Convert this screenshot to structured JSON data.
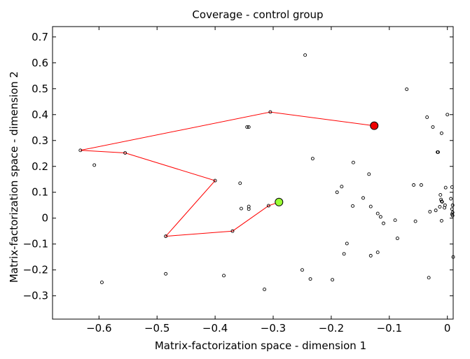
{
  "chart_data": {
    "type": "scatter",
    "title": "Coverage - control group",
    "xlabel": "Matrix-factorization space - dimension 1",
    "ylabel": "Matrix-factorization space - dimension 2",
    "xlim": [
      -0.68,
      0.01
    ],
    "ylim": [
      -0.39,
      0.74
    ],
    "xticks": [
      -0.6,
      -0.5,
      -0.4,
      -0.3,
      -0.2,
      -0.1,
      0
    ],
    "xtick_labels": [
      "−0.6",
      "−0.5",
      "−0.4",
      "−0.3",
      "−0.2",
      "−0.1",
      "0"
    ],
    "yticks": [
      -0.3,
      -0.2,
      -0.1,
      0,
      0.1,
      0.2,
      0.3,
      0.4,
      0.5,
      0.6,
      0.7
    ],
    "ytick_labels": [
      "−0.3",
      "−0.2",
      "−0.1",
      "0",
      "0.1",
      "0.2",
      "0.3",
      "0.4",
      "0.5",
      "0.6",
      "0.7"
    ],
    "grid": false,
    "legend": "none",
    "colors": {
      "path": "#ff0000",
      "start": "#99ff33",
      "end": "#ee0000",
      "points": "#000000"
    },
    "points": [
      [
        -0.245,
        0.63
      ],
      [
        -0.07,
        0.498
      ],
      [
        -0.345,
        0.352
      ],
      [
        -0.342,
        0.352
      ],
      [
        -0.608,
        0.205
      ],
      [
        -0.232,
        0.23
      ],
      [
        -0.357,
        0.135
      ],
      [
        -0.355,
        0.037
      ],
      [
        -0.342,
        0.045
      ],
      [
        -0.342,
        0.035
      ],
      [
        -0.485,
        -0.215
      ],
      [
        -0.385,
        -0.222
      ],
      [
        -0.595,
        -0.248
      ],
      [
        -0.315,
        -0.275
      ],
      [
        -0.162,
        0.215
      ],
      [
        -0.135,
        0.17
      ],
      [
        -0.182,
        0.122
      ],
      [
        -0.19,
        0.1
      ],
      [
        -0.163,
        0.047
      ],
      [
        -0.132,
        0.045
      ],
      [
        -0.145,
        0.078
      ],
      [
        -0.12,
        0.018
      ],
      [
        -0.115,
        0.005
      ],
      [
        -0.11,
        -0.02
      ],
      [
        -0.09,
        -0.008
      ],
      [
        -0.058,
        0.128
      ],
      [
        -0.045,
        0.128
      ],
      [
        -0.055,
        -0.012
      ],
      [
        -0.173,
        -0.098
      ],
      [
        -0.178,
        -0.138
      ],
      [
        -0.132,
        -0.145
      ],
      [
        -0.12,
        -0.132
      ],
      [
        -0.086,
        -0.078
      ],
      [
        -0.25,
        -0.2
      ],
      [
        -0.236,
        -0.235
      ],
      [
        -0.198,
        -0.238
      ],
      [
        -0.035,
        0.39
      ],
      [
        -0.025,
        0.352
      ],
      [
        -0.01,
        0.328
      ],
      [
        0.0,
        0.4
      ],
      [
        -0.017,
        0.255
      ],
      [
        -0.016,
        0.255
      ],
      [
        -0.012,
        0.09
      ],
      [
        -0.011,
        0.072
      ],
      [
        -0.01,
        0.065
      ],
      [
        -0.009,
        0.063
      ],
      [
        -0.013,
        0.044
      ],
      [
        -0.005,
        0.04
      ],
      [
        -0.004,
        0.05
      ],
      [
        -0.003,
        0.118
      ],
      [
        0.008,
        0.12
      ],
      [
        0.009,
        0.05
      ],
      [
        0.008,
        0.035
      ],
      [
        0.009,
        0.022
      ],
      [
        0.008,
        0.015
      ],
      [
        0.009,
        0.01
      ],
      [
        0.006,
        0.075
      ],
      [
        -0.03,
        0.025
      ],
      [
        -0.032,
        -0.23
      ],
      [
        0.01,
        -0.15
      ],
      [
        -0.01,
        -0.01
      ],
      [
        -0.02,
        0.03
      ]
    ],
    "path": [
      [
        -0.126,
        0.357
      ],
      [
        -0.305,
        0.41
      ],
      [
        -0.632,
        0.262
      ],
      [
        -0.555,
        0.252
      ],
      [
        -0.4,
        0.145
      ],
      [
        -0.485,
        -0.07
      ],
      [
        -0.37,
        -0.05
      ],
      [
        -0.308,
        0.048
      ],
      [
        -0.29,
        0.062
      ]
    ],
    "start_point": [
      -0.29,
      0.062
    ],
    "end_point": [
      -0.126,
      0.357
    ]
  }
}
